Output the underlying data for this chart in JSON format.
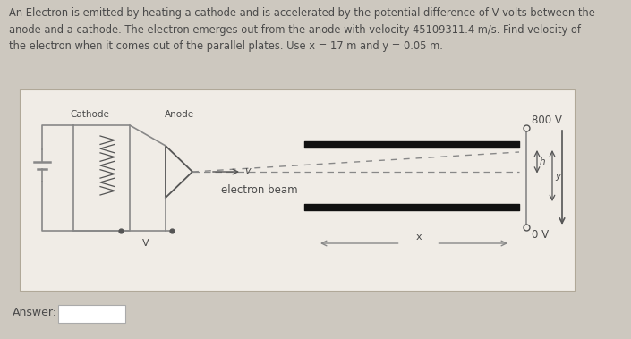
{
  "bg_color": "#cdc8bf",
  "panel_color": "#f0ece6",
  "text_color": "#4a4a4a",
  "line_color": "#888888",
  "dark_color": "#555555",
  "title_text": "An Electron is emitted by heating a cathode and is accelerated by the potential difference of V volts between the\nanode and a cathode. The electron emerges out from the anode with velocity 45109311.4 m/s. Find velocity of\nthe electron when it comes out of the parallel plates. Use x = 17 m and y = 0.05 m.",
  "answer_label": "Answer:",
  "cathode_label": "Cathode",
  "anode_label": "Anode",
  "v_label": "v",
  "beam_label": "electron beam",
  "h_label": "h",
  "y_label": "y",
  "v_volt_label": "800 V",
  "zero_v_label": "0 V",
  "x_label": "x",
  "V_label": "V"
}
